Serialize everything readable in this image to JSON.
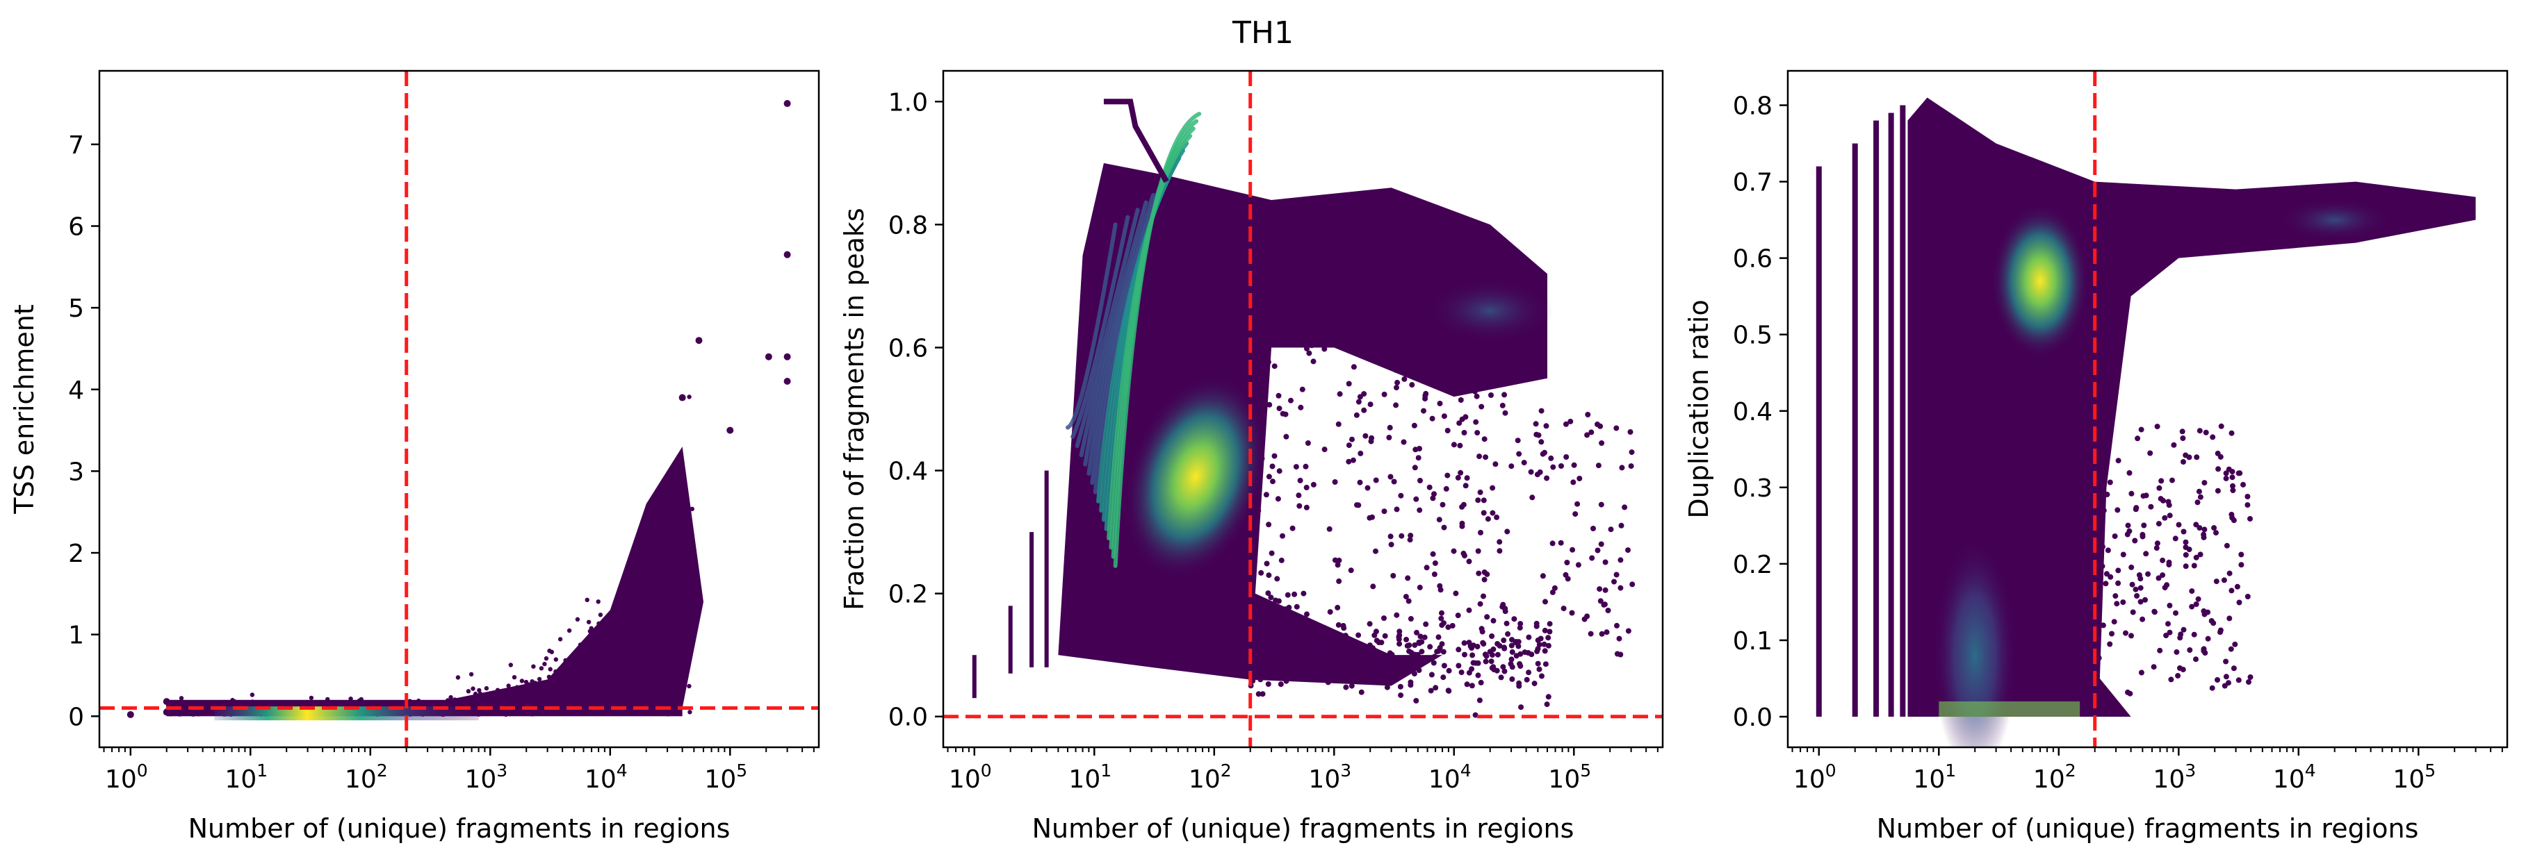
{
  "figure": {
    "title": "TH1"
  },
  "colors": {
    "threshold_line": "#ff1a1a",
    "density_low": "#440154",
    "density_mid": "#21918c",
    "density_high": "#fde725",
    "axes": "#000000"
  },
  "chart_data": [
    {
      "type": "scatter",
      "title": "",
      "xlabel": "Number of (unique) fragments in regions",
      "ylabel": "TSS enrichment",
      "xscale": "log",
      "xlim": [
        0.55,
        550000
      ],
      "ylim": [
        -0.38,
        7.9
      ],
      "xticks": [
        {
          "value": 1,
          "base": "10",
          "exp": "0"
        },
        {
          "value": 10,
          "base": "10",
          "exp": "1"
        },
        {
          "value": 100,
          "base": "10",
          "exp": "2"
        },
        {
          "value": 1000,
          "base": "10",
          "exp": "3"
        },
        {
          "value": 10000,
          "base": "10",
          "exp": "4"
        },
        {
          "value": 100000,
          "base": "10",
          "exp": "5"
        }
      ],
      "yticks": [
        0,
        1,
        2,
        3,
        4,
        5,
        6,
        7
      ],
      "ytick_labels": [
        "0",
        "1",
        "2",
        "3",
        "4",
        "5",
        "6",
        "7"
      ],
      "threshold_x": 200,
      "threshold_y": 0.1,
      "density_peak": {
        "x": 30,
        "y": 0.02
      },
      "outliers": [
        {
          "x": 300000,
          "y": 7.5
        },
        {
          "x": 300000,
          "y": 5.65
        },
        {
          "x": 300000,
          "y": 4.4
        },
        {
          "x": 300000,
          "y": 4.1
        },
        {
          "x": 210000,
          "y": 4.4
        },
        {
          "x": 55000,
          "y": 4.6
        },
        {
          "x": 100000,
          "y": 3.5
        },
        {
          "x": 40000,
          "y": 3.9
        }
      ],
      "grid": false,
      "colormap": "viridis"
    },
    {
      "type": "scatter",
      "title": "",
      "xlabel": "Number of (unique) fragments in regions",
      "ylabel": "Fraction of fragments in peaks",
      "xscale": "log",
      "xlim": [
        0.55,
        550000
      ],
      "ylim": [
        -0.05,
        1.05
      ],
      "xticks": [
        {
          "value": 1,
          "base": "10",
          "exp": "0"
        },
        {
          "value": 10,
          "base": "10",
          "exp": "1"
        },
        {
          "value": 100,
          "base": "10",
          "exp": "2"
        },
        {
          "value": 1000,
          "base": "10",
          "exp": "3"
        },
        {
          "value": 10000,
          "base": "10",
          "exp": "4"
        },
        {
          "value": 100000,
          "base": "10",
          "exp": "5"
        }
      ],
      "yticks": [
        0.0,
        0.2,
        0.4,
        0.6,
        0.8,
        1.0
      ],
      "ytick_labels": [
        "0.0",
        "0.2",
        "0.4",
        "0.6",
        "0.8",
        "1.0"
      ],
      "threshold_x": 200,
      "threshold_y": 0.0,
      "density_peak": {
        "x": 70,
        "y": 0.39
      },
      "secondary_peak": {
        "x": 20000,
        "y": 0.66
      },
      "grid": false,
      "colormap": "viridis"
    },
    {
      "type": "scatter",
      "title": "",
      "xlabel": "Number of (unique) fragments in regions",
      "ylabel": "Duplication ratio",
      "xscale": "log",
      "xlim": [
        0.55,
        550000
      ],
      "ylim": [
        -0.04,
        0.845
      ],
      "xticks": [
        {
          "value": 1,
          "base": "10",
          "exp": "0"
        },
        {
          "value": 10,
          "base": "10",
          "exp": "1"
        },
        {
          "value": 100,
          "base": "10",
          "exp": "2"
        },
        {
          "value": 1000,
          "base": "10",
          "exp": "3"
        },
        {
          "value": 10000,
          "base": "10",
          "exp": "4"
        },
        {
          "value": 100000,
          "base": "10",
          "exp": "5"
        }
      ],
      "yticks": [
        0.0,
        0.1,
        0.2,
        0.3,
        0.4,
        0.5,
        0.6,
        0.7,
        0.8
      ],
      "ytick_labels": [
        "0.0",
        "0.1",
        "0.2",
        "0.3",
        "0.4",
        "0.5",
        "0.6",
        "0.7",
        "0.8"
      ],
      "threshold_x": 200,
      "density_peak": {
        "x": 70,
        "y": 0.57
      },
      "secondary_peak": {
        "x": 20000,
        "y": 0.65
      },
      "grid": false,
      "colormap": "viridis"
    }
  ]
}
